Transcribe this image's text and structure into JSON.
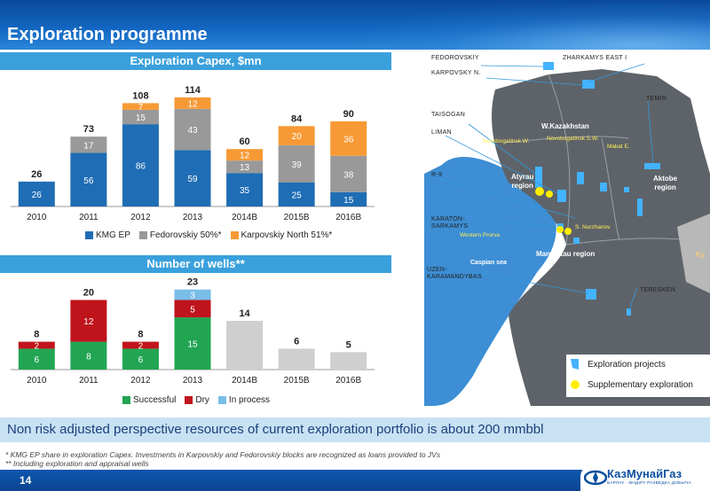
{
  "page": {
    "title": "Exploration programme",
    "banner": "Non risk adjusted perspective resources of current exploration portfolio is about 200 mmbbl",
    "footnotes": [
      "* KMG EP share in exploration Capex. Investments in Karpovskiy and Fedorovskiy blocks are recognized as loans provided to JVs",
      "** Including exploration and appraisal wells"
    ],
    "page_number": "14",
    "logo": {
      "name": "КазМунайГаз",
      "sub": "БАРЛАУ · ӨНДІРУ  РАЗВЕДКА ДОБЫЧА"
    }
  },
  "colors": {
    "kmg_ep": "#1f6db5",
    "fedorovskiy": "#999999",
    "karpovskiy": "#f79a35",
    "successful": "#22a553",
    "dry": "#c0141c",
    "in_process": "#79bde8",
    "plan": "#cfcfcf"
  },
  "chart_data": [
    {
      "type": "bar",
      "title": "Exploration Capex, $mn",
      "categories": [
        "2010",
        "2011",
        "2012",
        "2013",
        "2014B",
        "2015B",
        "2016B"
      ],
      "series": [
        {
          "name": "KMG EP",
          "values": [
            26,
            56,
            86,
            59,
            35,
            25,
            15
          ]
        },
        {
          "name": "Fedorovskiy 50%*",
          "values": [
            null,
            17,
            15,
            43,
            13,
            39,
            38
          ]
        },
        {
          "name": "Karpovskiy North 51%*",
          "values": [
            null,
            null,
            7,
            12,
            12,
            20,
            36
          ]
        }
      ],
      "totals": [
        26,
        73,
        108,
        114,
        60,
        84,
        90
      ],
      "ylim": [
        0,
        120
      ]
    },
    {
      "type": "bar",
      "title": "Number of wells**",
      "categories": [
        "2010",
        "2011",
        "2012",
        "2013",
        "2014B",
        "2015B",
        "2016B"
      ],
      "series": [
        {
          "name": "Successful",
          "values": [
            6,
            8,
            6,
            15,
            null,
            null,
            null
          ]
        },
        {
          "name": "Dry",
          "values": [
            2,
            12,
            2,
            5,
            null,
            null,
            null
          ]
        },
        {
          "name": "In process",
          "values": [
            null,
            null,
            null,
            3,
            null,
            null,
            null
          ]
        }
      ],
      "plan_values": [
        null,
        null,
        null,
        null,
        14,
        6,
        5
      ],
      "totals": [
        8,
        20,
        8,
        23,
        14,
        6,
        5
      ],
      "ylim": [
        0,
        25
      ]
    }
  ],
  "map": {
    "labels": {
      "fedorovskiy": "FEDOROVSKIY",
      "karpovskiy_n": "KARPOVSKY N.",
      "zharkamys": "ZHARKAMYS EAST I",
      "temir": "TEMIR",
      "taisogan": "TAISOGAN",
      "liman": "LIMAN",
      "r9": "R-9",
      "karaton": "KARATON-\nSARKAMYS",
      "uzen": "UZEN-\nKARAMANDYBAS",
      "teresken": "TERESKEN"
    },
    "regions": {
      "wk": "W.Kazakhstan",
      "atyrau": "Atyrau\nregion",
      "aktobe": "Aktobe\nregion",
      "mangistau": "Mangistau region",
      "caspian": "Caspian sea",
      "ky": "Ky"
    },
    "fields": {
      "nov_w": "Novobogatinsk W.",
      "nov_sw": "Novobogatinsk S.W.",
      "makat": "Makat E.",
      "western_prorva": "Western Prorva",
      "nurzhanov": "S. Nurzhanov"
    },
    "legend": {
      "projects": "Exploration projects",
      "supplementary": "Supplementary exploration"
    }
  }
}
